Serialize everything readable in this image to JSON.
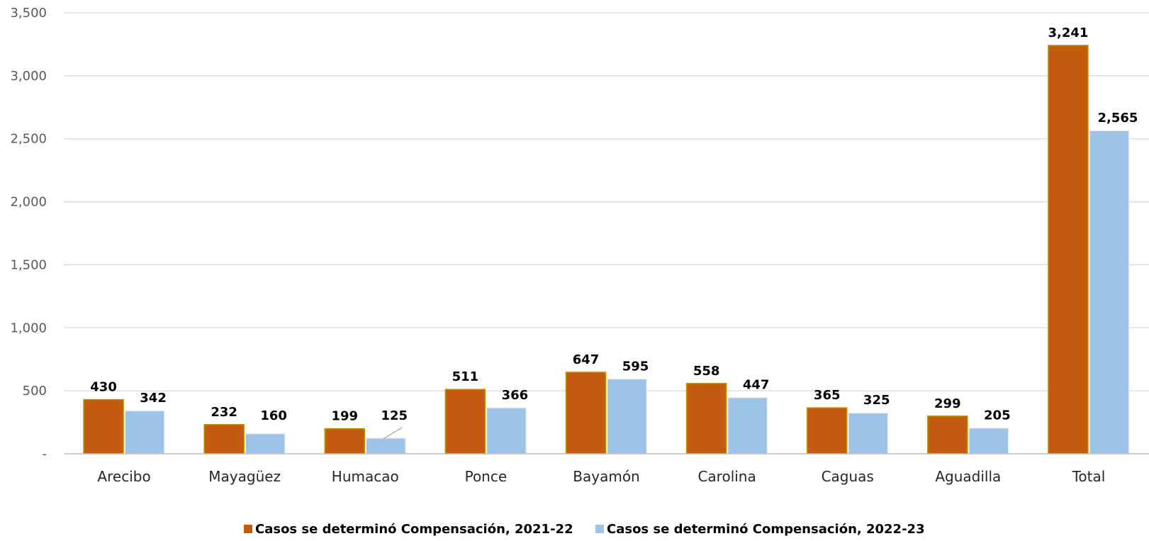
{
  "chart_data": {
    "type": "bar",
    "categories": [
      "Arecibo",
      "Mayagüez",
      "Humacao",
      "Ponce",
      "Bayamón",
      "Carolina",
      "Caguas",
      "Aguadilla",
      "Total"
    ],
    "series": [
      {
        "name": "Casos se determinó Compensación, 2021-22",
        "color": "#C55A11",
        "values": [
          430,
          232,
          199,
          511,
          647,
          558,
          365,
          299,
          3241
        ],
        "labels": [
          "430",
          "232",
          "199",
          "511",
          "647",
          "558",
          "365",
          "299",
          "3,241"
        ]
      },
      {
        "name": "Casos se determinó Compensación, 2022-23",
        "color": "#9DC3E6",
        "values": [
          342,
          160,
          125,
          366,
          595,
          447,
          325,
          205,
          2565
        ],
        "labels": [
          "342",
          "160",
          "125",
          "366",
          "595",
          "447",
          "325",
          "205",
          "2,565"
        ]
      }
    ],
    "yticks": [
      0,
      500,
      1000,
      1500,
      2000,
      2500,
      3000,
      3500
    ],
    "ytick_labels": [
      "-",
      "500",
      "1,000",
      "1,500",
      "2,000",
      "2,500",
      "3,000",
      "3,500"
    ],
    "ylim": [
      0,
      3500
    ],
    "grid": true,
    "legend_position": "bottom"
  }
}
